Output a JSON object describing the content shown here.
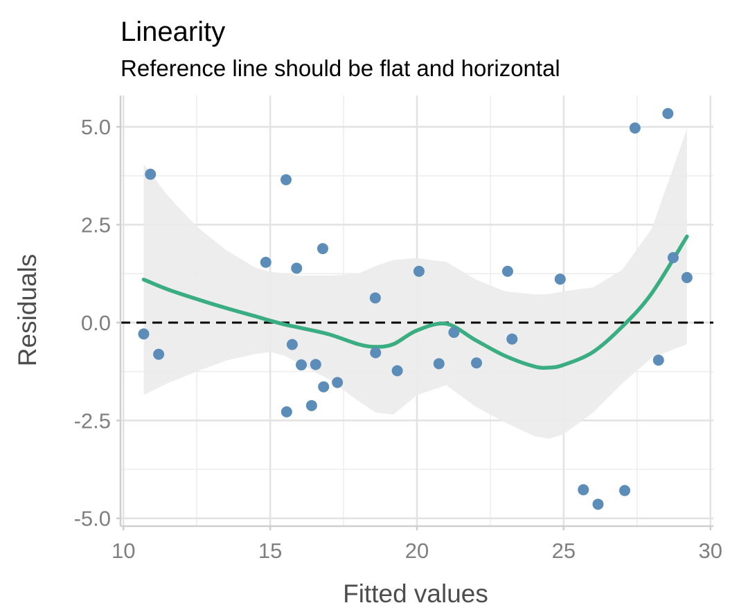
{
  "chart_data": {
    "type": "scatter",
    "title": "Linearity",
    "subtitle": "Reference line should be flat and horizontal",
    "xlabel": "Fitted values",
    "ylabel": "Residuals",
    "xlim": [
      9.9,
      30.1
    ],
    "ylim": [
      -5.2,
      5.8
    ],
    "x_ticks": [
      10,
      15,
      20,
      25,
      30
    ],
    "x_tick_labels": [
      "10",
      "15",
      "20",
      "25",
      "30"
    ],
    "y_ticks": [
      -5,
      -2.5,
      0,
      2.5,
      5
    ],
    "y_tick_labels": [
      "-5.0",
      "-2.5",
      "0.0",
      "2.5",
      "5.0"
    ],
    "x_minor_ticks": [
      12.5,
      17.5,
      22.5,
      27.5
    ],
    "y_minor_ticks": [
      -3.75,
      -1.25,
      1.25,
      3.75
    ],
    "reference_line": {
      "y": 0,
      "style": "dashed",
      "color": "#000000"
    },
    "colors": {
      "points": "#5b8db8",
      "smooth": "#3aae82",
      "band": "#ebebeb"
    },
    "points": [
      {
        "x": 10.69,
        "y": -0.29
      },
      {
        "x": 10.92,
        "y": 3.79
      },
      {
        "x": 11.2,
        "y": -0.81
      },
      {
        "x": 14.85,
        "y": 1.54
      },
      {
        "x": 15.54,
        "y": 3.65
      },
      {
        "x": 15.56,
        "y": -2.28
      },
      {
        "x": 15.75,
        "y": -0.56
      },
      {
        "x": 15.9,
        "y": 1.39
      },
      {
        "x": 16.06,
        "y": -1.08
      },
      {
        "x": 16.41,
        "y": -2.12
      },
      {
        "x": 16.55,
        "y": -1.07
      },
      {
        "x": 16.79,
        "y": 1.89
      },
      {
        "x": 16.82,
        "y": -1.64
      },
      {
        "x": 17.29,
        "y": -1.53
      },
      {
        "x": 18.58,
        "y": 0.63
      },
      {
        "x": 18.59,
        "y": -0.77
      },
      {
        "x": 19.33,
        "y": -1.23
      },
      {
        "x": 20.07,
        "y": 1.31
      },
      {
        "x": 20.75,
        "y": -1.05
      },
      {
        "x": 21.26,
        "y": -0.25
      },
      {
        "x": 22.03,
        "y": -1.03
      },
      {
        "x": 23.09,
        "y": 1.31
      },
      {
        "x": 23.24,
        "y": -0.42
      },
      {
        "x": 24.88,
        "y": 1.11
      },
      {
        "x": 25.67,
        "y": -4.27
      },
      {
        "x": 26.17,
        "y": -4.64
      },
      {
        "x": 27.08,
        "y": -4.29
      },
      {
        "x": 27.43,
        "y": 4.97
      },
      {
        "x": 28.23,
        "y": -0.96
      },
      {
        "x": 28.55,
        "y": 5.34
      },
      {
        "x": 28.73,
        "y": 1.66
      },
      {
        "x": 29.2,
        "y": 1.15
      }
    ],
    "smooth": {
      "x": [
        10.69,
        11.5,
        12.5,
        13.5,
        14.5,
        15.0,
        15.5,
        16.0,
        17.0,
        18.0,
        18.6,
        19.2,
        20.0,
        21.0,
        22.0,
        23.0,
        24.0,
        24.5,
        25.0,
        26.0,
        27.0,
        28.0,
        29.2
      ],
      "y": [
        1.1,
        0.85,
        0.6,
        0.37,
        0.16,
        0.05,
        -0.05,
        -0.13,
        -0.3,
        -0.55,
        -0.62,
        -0.55,
        -0.2,
        -0.03,
        -0.45,
        -0.85,
        -1.12,
        -1.15,
        -1.08,
        -0.75,
        -0.1,
        0.75,
        2.2
      ],
      "lower": [
        -1.85,
        -1.55,
        -1.25,
        -0.97,
        -0.8,
        -0.75,
        -0.85,
        -1.05,
        -1.45,
        -2.0,
        -2.3,
        -2.35,
        -1.85,
        -1.6,
        -2.15,
        -2.55,
        -2.9,
        -2.97,
        -2.85,
        -2.3,
        -1.55,
        -0.9,
        -0.55
      ],
      "upper": [
        4.05,
        3.25,
        2.45,
        1.85,
        1.4,
        1.3,
        1.25,
        1.2,
        1.2,
        1.25,
        1.45,
        1.6,
        1.65,
        1.55,
        1.1,
        0.8,
        0.72,
        0.73,
        0.8,
        0.9,
        1.35,
        2.4,
        4.95
      ]
    }
  }
}
